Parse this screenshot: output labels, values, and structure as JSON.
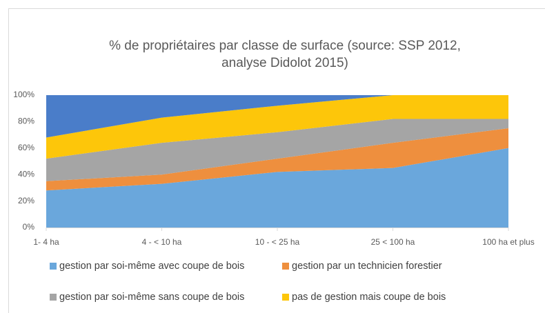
{
  "chart_data": {
    "type": "stacked_area",
    "title": [
      "% de propriétaires par classe de surface (source: SSP 2012,",
      "analyse Didolot 2015)"
    ],
    "categories": [
      "1- 4 ha",
      "4 - < 10 ha",
      "10 - < 25 ha",
      "25 < 100 ha",
      "100 ha et plus"
    ],
    "series": [
      {
        "name": "gestion par soi-même avec coupe de bois",
        "color": "#6aa7dc",
        "values": [
          28,
          33,
          42,
          45,
          60
        ]
      },
      {
        "name": "gestion par un technicien forestier",
        "color": "#ee8f3e",
        "values": [
          7,
          7,
          10,
          19,
          15
        ]
      },
      {
        "name": "gestion par soi-même sans coupe de bois",
        "color": "#a5a5a5",
        "values": [
          17,
          24,
          20,
          18,
          7
        ]
      },
      {
        "name": "pas de gestion mais coupe de bois",
        "color": "#fdc60a",
        "values": [
          16,
          19,
          20,
          18,
          18
        ]
      },
      {
        "color": "#4a7dc9",
        "values": [
          32,
          17,
          8,
          0,
          0
        ]
      }
    ],
    "ylim": [
      0,
      100
    ],
    "yticks": [
      {
        "value": 0,
        "label": "0%"
      },
      {
        "value": 20,
        "label": "20%"
      },
      {
        "value": 40,
        "label": "40%"
      },
      {
        "value": 60,
        "label": "60%"
      },
      {
        "value": 80,
        "label": "80%"
      },
      {
        "value": 100,
        "label": "100%"
      }
    ]
  }
}
